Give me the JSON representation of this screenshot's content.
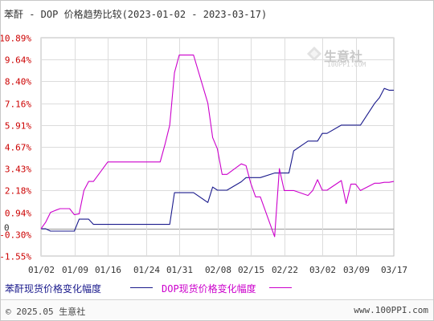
{
  "header": {
    "title": "苯酐 - DOP 价格趋势比较(2023-01-02 - 2023-03-17)"
  },
  "watermark": {
    "brand": "生意社",
    "url": "100PPI.COM",
    "icon": "diamond-logo-icon"
  },
  "legend": [
    {
      "label": "苯酐现货价格变化幅度"
    },
    {
      "label": "DOP现货价格变化幅度"
    }
  ],
  "footer": {
    "copyright": "© 2025.05 生意社",
    "site": "www.100PPI.com"
  },
  "colors": {
    "series_0": "#1a1a8c",
    "series_1": "#cc00cc",
    "grid": "#dcdcdc",
    "zero_line": "#999999",
    "axis_text": "#cc0000"
  },
  "chart_data": {
    "type": "line",
    "title": "苯酐 - DOP 价格趋势比较(2023-01-02 - 2023-03-17)",
    "xlabel": "",
    "ylabel": "",
    "y_ticks": [
      "10.89%",
      "9.64%",
      "8.40%",
      "7.16%",
      "5.91%",
      "4.67%",
      "3.43%",
      "2.18%",
      "0.94%",
      "-0.30%",
      "-1.55%"
    ],
    "y_values": [
      10.89,
      9.64,
      8.4,
      7.16,
      5.91,
      4.67,
      3.43,
      2.18,
      0.94,
      -0.3,
      -1.55
    ],
    "zero_label": "0",
    "x_ticks": [
      "01/02",
      "01/09",
      "01/16",
      "01/24",
      "01/31",
      "02/08",
      "02/15",
      "02/22",
      "03/02",
      "03/09",
      "03/17"
    ],
    "ylim": [
      -1.55,
      10.89
    ],
    "grid": true,
    "legend_position": "bottom",
    "series": [
      {
        "name": "苯酐现货价格变化幅度",
        "points": [
          [
            "01/02",
            0.0
          ],
          [
            "01/03",
            0.0
          ],
          [
            "01/04",
            -0.13
          ],
          [
            "01/05",
            -0.13
          ],
          [
            "01/06",
            -0.13
          ],
          [
            "01/08",
            -0.13
          ],
          [
            "01/09",
            -0.13
          ],
          [
            "01/10",
            0.55
          ],
          [
            "01/11",
            0.55
          ],
          [
            "01/12",
            0.55
          ],
          [
            "01/13",
            0.25
          ],
          [
            "01/16",
            0.25
          ],
          [
            "01/20",
            0.25
          ],
          [
            "01/24",
            0.25
          ],
          [
            "01/29",
            0.25
          ],
          [
            "01/30",
            2.06
          ],
          [
            "01/31",
            2.06
          ],
          [
            "02/01",
            2.06
          ],
          [
            "02/02",
            2.06
          ],
          [
            "02/03",
            2.06
          ],
          [
            "02/06",
            1.5
          ],
          [
            "02/07",
            2.38
          ],
          [
            "02/08",
            2.2
          ],
          [
            "02/09",
            2.2
          ],
          [
            "02/10",
            2.2
          ],
          [
            "02/13",
            2.68
          ],
          [
            "02/14",
            2.92
          ],
          [
            "02/15",
            2.92
          ],
          [
            "02/16",
            2.92
          ],
          [
            "02/17",
            2.92
          ],
          [
            "02/20",
            3.18
          ],
          [
            "02/21",
            3.18
          ],
          [
            "02/22",
            3.18
          ],
          [
            "02/23",
            3.18
          ],
          [
            "02/24",
            4.44
          ],
          [
            "02/27",
            5.0
          ],
          [
            "02/28",
            5.0
          ],
          [
            "03/01",
            5.0
          ],
          [
            "03/02",
            5.44
          ],
          [
            "03/03",
            5.44
          ],
          [
            "03/06",
            5.91
          ],
          [
            "03/07",
            5.91
          ],
          [
            "03/08",
            5.91
          ],
          [
            "03/09",
            5.91
          ],
          [
            "03/10",
            5.91
          ],
          [
            "03/13",
            7.16
          ],
          [
            "03/14",
            7.48
          ],
          [
            "03/15",
            8.0
          ],
          [
            "03/16",
            7.9
          ],
          [
            "03/17",
            7.9
          ]
        ]
      },
      {
        "name": "DOP现货价格变化幅度",
        "points": [
          [
            "01/02",
            0.0
          ],
          [
            "01/03",
            0.38
          ],
          [
            "01/04",
            0.94
          ],
          [
            "01/05",
            1.05
          ],
          [
            "01/06",
            1.15
          ],
          [
            "01/08",
            1.15
          ],
          [
            "01/09",
            0.8
          ],
          [
            "01/10",
            0.85
          ],
          [
            "01/11",
            2.18
          ],
          [
            "01/12",
            2.7
          ],
          [
            "01/13",
            2.7
          ],
          [
            "01/16",
            3.81
          ],
          [
            "01/20",
            3.81
          ],
          [
            "01/24",
            3.81
          ],
          [
            "01/27",
            3.81
          ],
          [
            "01/28",
            4.8
          ],
          [
            "01/29",
            5.91
          ],
          [
            "01/30",
            8.9
          ],
          [
            "01/31",
            9.9
          ],
          [
            "02/01",
            9.9
          ],
          [
            "02/02",
            9.9
          ],
          [
            "02/03",
            9.9
          ],
          [
            "02/06",
            7.16
          ],
          [
            "02/07",
            5.2
          ],
          [
            "02/08",
            4.55
          ],
          [
            "02/09",
            3.1
          ],
          [
            "02/10",
            3.1
          ],
          [
            "02/13",
            3.7
          ],
          [
            "02/14",
            3.6
          ],
          [
            "02/15",
            2.6
          ],
          [
            "02/16",
            1.82
          ],
          [
            "02/17",
            1.82
          ],
          [
            "02/20",
            -0.45
          ],
          [
            "02/21",
            3.43
          ],
          [
            "02/22",
            2.18
          ],
          [
            "02/23",
            2.18
          ],
          [
            "02/24",
            2.18
          ],
          [
            "02/27",
            1.9
          ],
          [
            "02/28",
            2.18
          ],
          [
            "03/01",
            2.8
          ],
          [
            "03/02",
            2.2
          ],
          [
            "03/03",
            2.2
          ],
          [
            "03/06",
            2.75
          ],
          [
            "03/07",
            1.44
          ],
          [
            "03/08",
            2.55
          ],
          [
            "03/09",
            2.55
          ],
          [
            "03/10",
            2.18
          ],
          [
            "03/13",
            2.6
          ],
          [
            "03/14",
            2.6
          ],
          [
            "03/15",
            2.65
          ],
          [
            "03/16",
            2.65
          ],
          [
            "03/17",
            2.7
          ]
        ]
      }
    ]
  }
}
